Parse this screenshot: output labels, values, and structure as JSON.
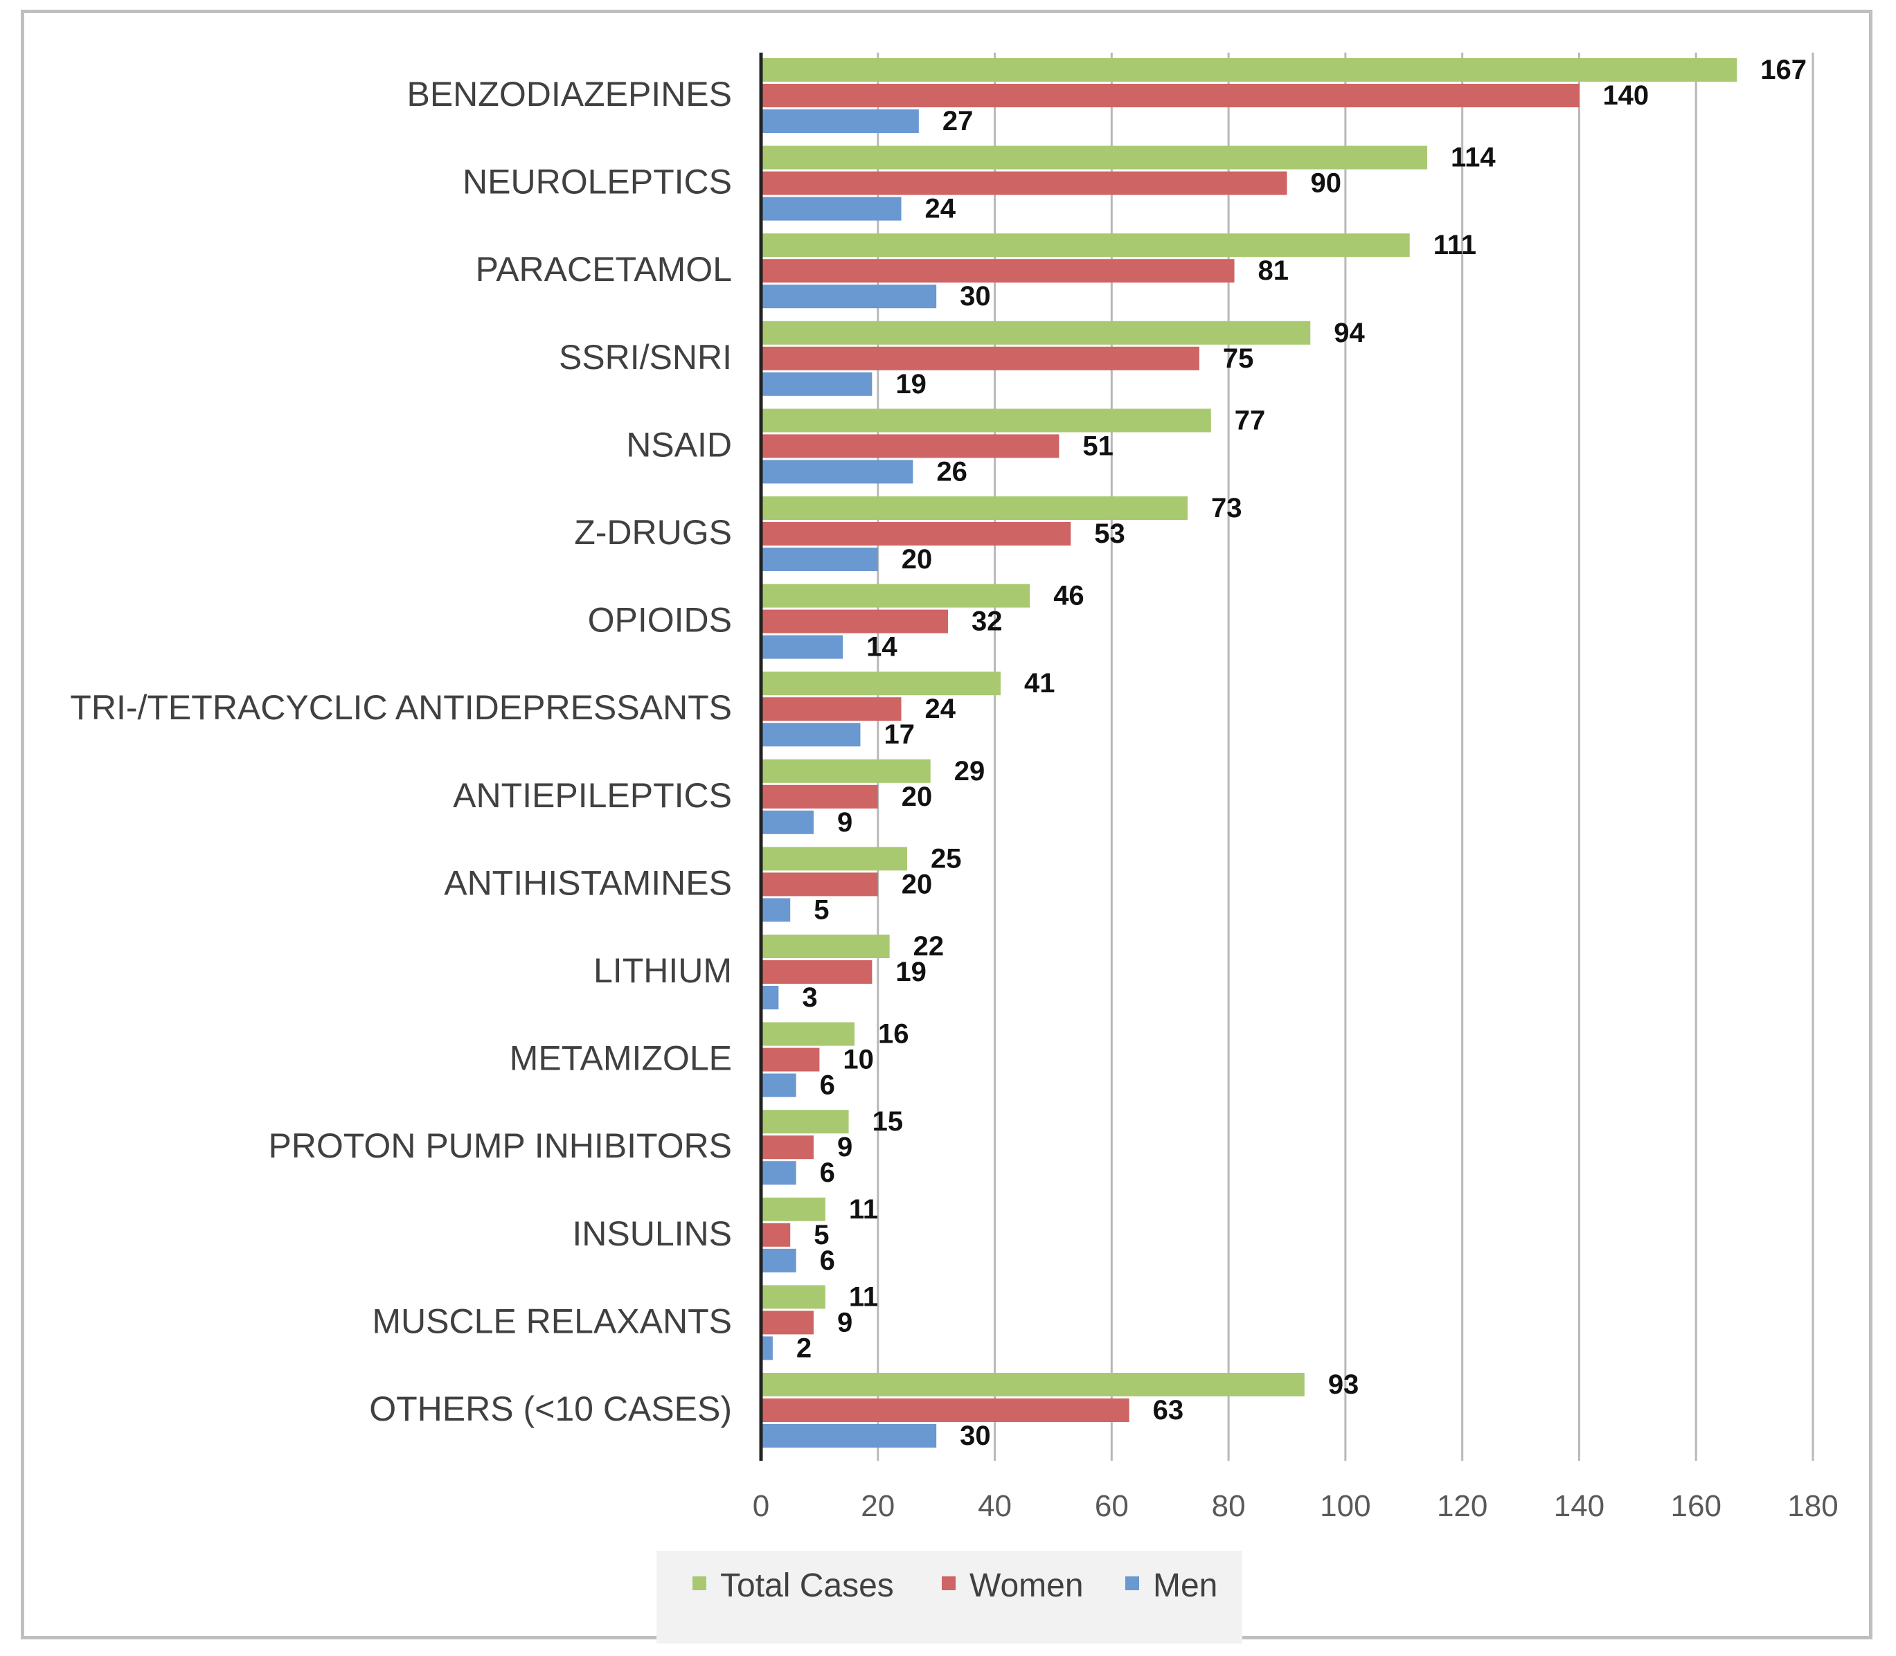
{
  "chart_data": {
    "type": "bar",
    "orientation": "horizontal",
    "categories": [
      "BENZODIAZEPINES",
      "NEUROLEPTICS",
      "PARACETAMOL",
      "SSRI/SNRI",
      "NSAID",
      "Z-DRUGS",
      "OPIOIDS",
      "TRI-/TETRACYCLIC ANTIDEPRESSANTS",
      "ANTIEPILEPTICS",
      "ANTIHISTAMINES",
      "LITHIUM",
      "METAMIZOLE",
      "PROTON PUMP INHIBITORS",
      "INSULINS",
      "MUSCLE RELAXANTS",
      "OTHERS (<10 CASES)"
    ],
    "series": [
      {
        "name": "Total Cases",
        "color": "#a9c971",
        "values": [
          167,
          114,
          111,
          94,
          77,
          73,
          46,
          41,
          29,
          25,
          22,
          16,
          15,
          11,
          11,
          93
        ]
      },
      {
        "name": "Women",
        "color": "#cf6464",
        "values": [
          140,
          90,
          81,
          75,
          51,
          53,
          32,
          24,
          20,
          20,
          19,
          10,
          9,
          5,
          9,
          63
        ]
      },
      {
        "name": "Men",
        "color": "#6a98d0",
        "values": [
          27,
          24,
          30,
          19,
          26,
          20,
          14,
          17,
          9,
          5,
          3,
          6,
          6,
          6,
          2,
          30
        ]
      }
    ],
    "xlim": [
      0,
      180
    ],
    "xticks": [
      "0",
      "20",
      "40",
      "60",
      "80",
      "100",
      "120",
      "140",
      "160",
      "180"
    ],
    "title": "",
    "xlabel": "",
    "ylabel": "",
    "grid": "vertical",
    "legend_position": "bottom"
  }
}
